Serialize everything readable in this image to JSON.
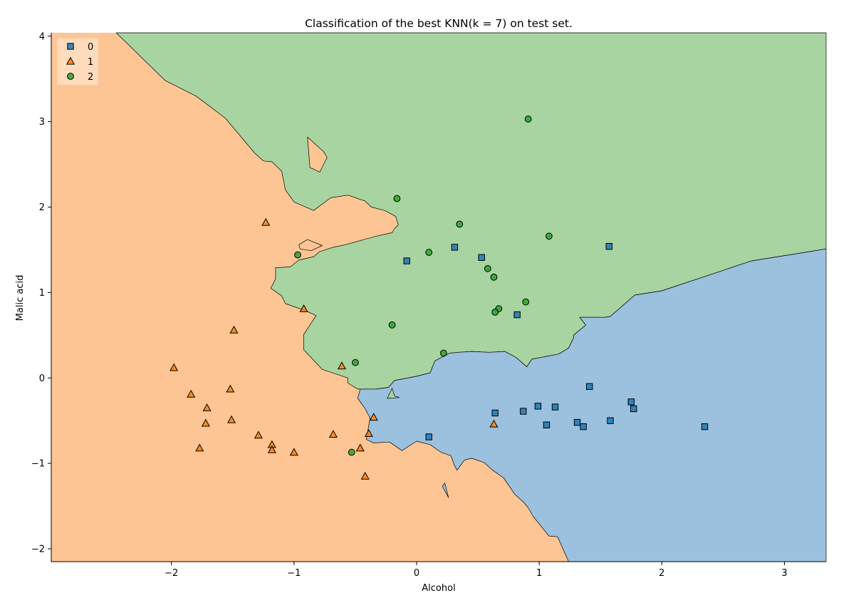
{
  "chart_data": {
    "type": "scatter",
    "title": "Classification of the best KNN(k = 7) on test set.",
    "xlabel": "Alcohol",
    "ylabel": "Malic acid",
    "xlim": [
      -2.98,
      3.34
    ],
    "ylim": [
      -2.15,
      4.04
    ],
    "x_ticks": [
      -2,
      -1,
      0,
      1,
      2,
      3
    ],
    "y_ticks": [
      -2,
      -1,
      0,
      1,
      2,
      3,
      4
    ],
    "x_tick_labels": [
      "−2",
      "−1",
      "0",
      "1",
      "2",
      "3"
    ],
    "y_tick_labels": [
      "−2",
      "−1",
      "0",
      "1",
      "2",
      "3",
      "4"
    ],
    "grid": false,
    "legend_position": "top-left",
    "series": [
      {
        "name": "0",
        "marker": "square",
        "color": "#1f77b4",
        "region_color": "#9bc1de",
        "points": [
          [
            -0.08,
            1.37
          ],
          [
            0.31,
            1.53
          ],
          [
            0.53,
            1.41
          ],
          [
            0.82,
            0.74
          ],
          [
            1.57,
            1.54
          ],
          [
            0.1,
            -0.69
          ],
          [
            0.64,
            -0.41
          ],
          [
            0.87,
            -0.39
          ],
          [
            0.99,
            -0.33
          ],
          [
            1.06,
            -0.55
          ],
          [
            1.13,
            -0.34
          ],
          [
            1.31,
            -0.52
          ],
          [
            1.36,
            -0.57
          ],
          [
            1.41,
            -0.1
          ],
          [
            1.58,
            -0.5
          ],
          [
            1.75,
            -0.28
          ],
          [
            1.77,
            -0.36
          ],
          [
            2.35,
            -0.57
          ]
        ]
      },
      {
        "name": "1",
        "marker": "triangle",
        "color": "#ff7f0e",
        "region_color": "#fec594",
        "points": [
          [
            -1.23,
            1.82
          ],
          [
            -0.92,
            0.81
          ],
          [
            -1.49,
            0.56
          ],
          [
            -1.98,
            0.12
          ],
          [
            -1.84,
            -0.19
          ],
          [
            -1.52,
            -0.13
          ],
          [
            -1.71,
            -0.35
          ],
          [
            -1.72,
            -0.53
          ],
          [
            -1.51,
            -0.49
          ],
          [
            -1.77,
            -0.82
          ],
          [
            -1.29,
            -0.67
          ],
          [
            -1.18,
            -0.78
          ],
          [
            -1.18,
            -0.84
          ],
          [
            -1.0,
            -0.87
          ],
          [
            -0.68,
            -0.66
          ],
          [
            -0.61,
            0.14
          ],
          [
            -0.46,
            -0.82
          ],
          [
            -0.39,
            -0.65
          ],
          [
            -0.35,
            -0.46
          ],
          [
            -0.42,
            -1.15
          ],
          [
            0.63,
            -0.54
          ]
        ]
      },
      {
        "name": "2",
        "marker": "circle",
        "color": "#2ca02c",
        "region_color": "#a8d4a1",
        "points": [
          [
            0.91,
            3.03
          ],
          [
            -0.16,
            2.1
          ],
          [
            0.35,
            1.8
          ],
          [
            1.08,
            1.66
          ],
          [
            -0.97,
            1.44
          ],
          [
            0.1,
            1.47
          ],
          [
            0.58,
            1.28
          ],
          [
            0.63,
            1.18
          ],
          [
            0.89,
            0.89
          ],
          [
            0.67,
            0.81
          ],
          [
            0.64,
            0.77
          ],
          [
            -0.2,
            0.62
          ],
          [
            0.22,
            0.29
          ],
          [
            -0.5,
            0.18
          ],
          [
            -0.53,
            -0.87
          ]
        ]
      }
    ],
    "regions": {
      "green": [
        [
          -2.45,
          4.04
        ],
        [
          3.34,
          4.04
        ],
        [
          3.34,
          1.51
        ],
        [
          2.73,
          1.37
        ],
        [
          2.44,
          1.23
        ],
        [
          2.0,
          1.02
        ],
        [
          1.78,
          0.97
        ],
        [
          1.58,
          0.72
        ],
        [
          1.54,
          0.71
        ],
        [
          1.33,
          0.71
        ],
        [
          1.38,
          0.62
        ],
        [
          1.28,
          0.5
        ],
        [
          1.28,
          0.47
        ],
        [
          1.24,
          0.35
        ],
        [
          1.16,
          0.28
        ],
        [
          0.94,
          0.22
        ],
        [
          0.9,
          0.13
        ],
        [
          0.81,
          0.24
        ],
        [
          0.72,
          0.31
        ],
        [
          0.59,
          0.3
        ],
        [
          0.45,
          0.31
        ],
        [
          0.34,
          0.3
        ],
        [
          0.27,
          0.29
        ],
        [
          0.15,
          0.2
        ],
        [
          0.11,
          0.06
        ],
        [
          0.0,
          0.02
        ],
        [
          -0.18,
          -0.03
        ],
        [
          -0.23,
          -0.11
        ],
        [
          -0.33,
          -0.13
        ],
        [
          -0.48,
          -0.13
        ],
        [
          -0.56,
          -0.06
        ],
        [
          -0.56,
          0.0
        ],
        [
          -0.77,
          0.1
        ],
        [
          -0.92,
          0.33
        ],
        [
          -0.92,
          0.51
        ],
        [
          -0.82,
          0.73
        ],
        [
          -0.91,
          0.79
        ],
        [
          -1.07,
          0.87
        ],
        [
          -1.1,
          0.96
        ],
        [
          -1.19,
          1.05
        ],
        [
          -1.15,
          1.16
        ],
        [
          -1.15,
          1.29
        ],
        [
          -1.03,
          1.3
        ],
        [
          -0.96,
          1.38
        ],
        [
          -0.84,
          1.42
        ],
        [
          -0.79,
          1.48
        ],
        [
          -0.68,
          1.53
        ],
        [
          -0.58,
          1.56
        ],
        [
          -0.33,
          1.66
        ],
        [
          -0.2,
          1.7
        ],
        [
          -0.18,
          1.75
        ],
        [
          -0.15,
          1.79
        ],
        [
          -0.17,
          1.89
        ],
        [
          -0.26,
          1.96
        ],
        [
          -0.37,
          2.0
        ],
        [
          -0.42,
          2.07
        ],
        [
          -0.56,
          2.14
        ],
        [
          -0.7,
          2.11
        ],
        [
          -0.84,
          1.96
        ],
        [
          -1.0,
          2.06
        ],
        [
          -1.07,
          2.2
        ],
        [
          -1.1,
          2.42
        ],
        [
          -1.18,
          2.53
        ],
        [
          -1.25,
          2.54
        ],
        [
          -1.32,
          2.63
        ],
        [
          -1.56,
          3.04
        ],
        [
          -1.8,
          3.3
        ],
        [
          -2.05,
          3.48
        ]
      ],
      "blue": [
        [
          3.34,
          1.51
        ],
        [
          3.34,
          -2.15
        ],
        [
          1.24,
          -2.15
        ],
        [
          1.15,
          -1.86
        ],
        [
          1.08,
          -1.85
        ],
        [
          0.95,
          -1.62
        ],
        [
          0.91,
          -1.52
        ],
        [
          0.87,
          -1.45
        ],
        [
          0.8,
          -1.36
        ],
        [
          0.71,
          -1.17
        ],
        [
          0.62,
          -1.08
        ],
        [
          0.55,
          -0.99
        ],
        [
          0.45,
          -0.94
        ],
        [
          0.39,
          -0.96
        ],
        [
          0.33,
          -1.08
        ],
        [
          0.31,
          -1.03
        ],
        [
          0.28,
          -0.91
        ],
        [
          0.2,
          -0.87
        ],
        [
          0.11,
          -0.78
        ],
        [
          0.0,
          -0.74
        ],
        [
          -0.12,
          -0.85
        ],
        [
          -0.22,
          -0.75
        ],
        [
          -0.35,
          -0.76
        ],
        [
          -0.41,
          -0.72
        ],
        [
          -0.38,
          -0.47
        ],
        [
          -0.42,
          -0.36
        ],
        [
          -0.48,
          -0.24
        ],
        [
          -0.46,
          -0.13
        ],
        [
          -0.33,
          -0.13
        ],
        [
          -0.23,
          -0.11
        ],
        [
          -0.18,
          -0.03
        ],
        [
          0.0,
          0.02
        ],
        [
          0.11,
          0.06
        ],
        [
          0.15,
          0.2
        ],
        [
          0.27,
          0.29
        ],
        [
          0.34,
          0.3
        ],
        [
          0.45,
          0.31
        ],
        [
          0.59,
          0.3
        ],
        [
          0.72,
          0.31
        ],
        [
          0.81,
          0.24
        ],
        [
          0.9,
          0.13
        ],
        [
          0.94,
          0.22
        ],
        [
          1.16,
          0.28
        ],
        [
          1.24,
          0.35
        ],
        [
          1.28,
          0.47
        ],
        [
          1.28,
          0.5
        ],
        [
          1.38,
          0.62
        ],
        [
          1.33,
          0.71
        ],
        [
          1.54,
          0.71
        ],
        [
          1.58,
          0.72
        ],
        [
          1.78,
          0.97
        ],
        [
          2.0,
          1.02
        ],
        [
          2.44,
          1.23
        ],
        [
          2.73,
          1.37
        ]
      ],
      "orange_islands": [
        [
          [
            -0.89,
            2.82
          ],
          [
            -0.76,
            2.65
          ],
          [
            -0.73,
            2.58
          ],
          [
            -0.79,
            2.41
          ],
          [
            -0.85,
            2.45
          ],
          [
            -0.87,
            2.46
          ]
        ],
        [
          [
            -0.96,
            1.56
          ],
          [
            -0.89,
            1.62
          ],
          [
            -0.77,
            1.55
          ],
          [
            -0.86,
            1.49
          ],
          [
            -0.95,
            1.51
          ]
        ]
      ],
      "green_islands": [
        [
          [
            -0.2,
            -0.12
          ],
          [
            -0.18,
            -0.21
          ],
          [
            -0.14,
            -0.23
          ],
          [
            -0.24,
            -0.24
          ]
        ]
      ],
      "blue_islands": [
        [
          [
            0.23,
            -1.23
          ],
          [
            0.26,
            -1.4
          ],
          [
            0.21,
            -1.27
          ]
        ]
      ]
    }
  }
}
